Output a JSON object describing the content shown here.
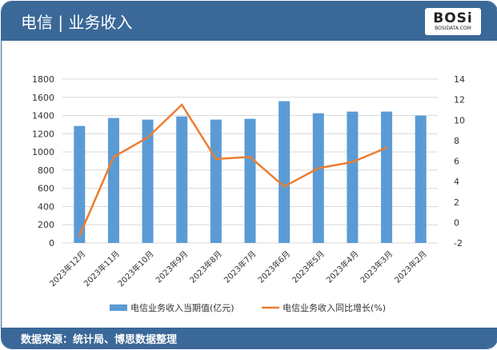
{
  "header": {
    "title": "电信 | 业务收入",
    "logo_text": "BOSi",
    "logo_sub": "BOSIDATA.COM"
  },
  "footer": {
    "source": "数据来源：统计局、博思数据整理"
  },
  "colors": {
    "bar": "#5b9bd5",
    "line": "#ed7d31",
    "header": "#3a6898"
  },
  "chart_data": {
    "type": "bar",
    "categories": [
      "2023年12月",
      "2023年11月",
      "2023年10月",
      "2023年9月",
      "2023年8月",
      "2023年7月",
      "2023年6月",
      "2023年5月",
      "2023年4月",
      "2023年3月",
      "2023年2月"
    ],
    "series": [
      {
        "name": "电信业务收入当期值(亿元)",
        "type": "bar",
        "axis": "left",
        "values": [
          1285,
          1373,
          1355,
          1390,
          1355,
          1364,
          1557,
          1425,
          1443,
          1443,
          1399
        ]
      },
      {
        "name": "电信业务收入同比增长(%)",
        "type": "line",
        "axis": "right",
        "values": [
          -1.3,
          6.4,
          8.3,
          11.5,
          6.2,
          6.4,
          3.5,
          5.3,
          5.9,
          7.3,
          null
        ]
      }
    ],
    "ylim": [
      0,
      1800
    ],
    "yticks": [
      0,
      200,
      400,
      600,
      800,
      1000,
      1200,
      1400,
      1600,
      1800
    ],
    "y2lim": [
      -2,
      14
    ],
    "y2ticks": [
      -2,
      0,
      2,
      4,
      6,
      8,
      10,
      12,
      14
    ],
    "grid": true,
    "legend": "bottom"
  }
}
